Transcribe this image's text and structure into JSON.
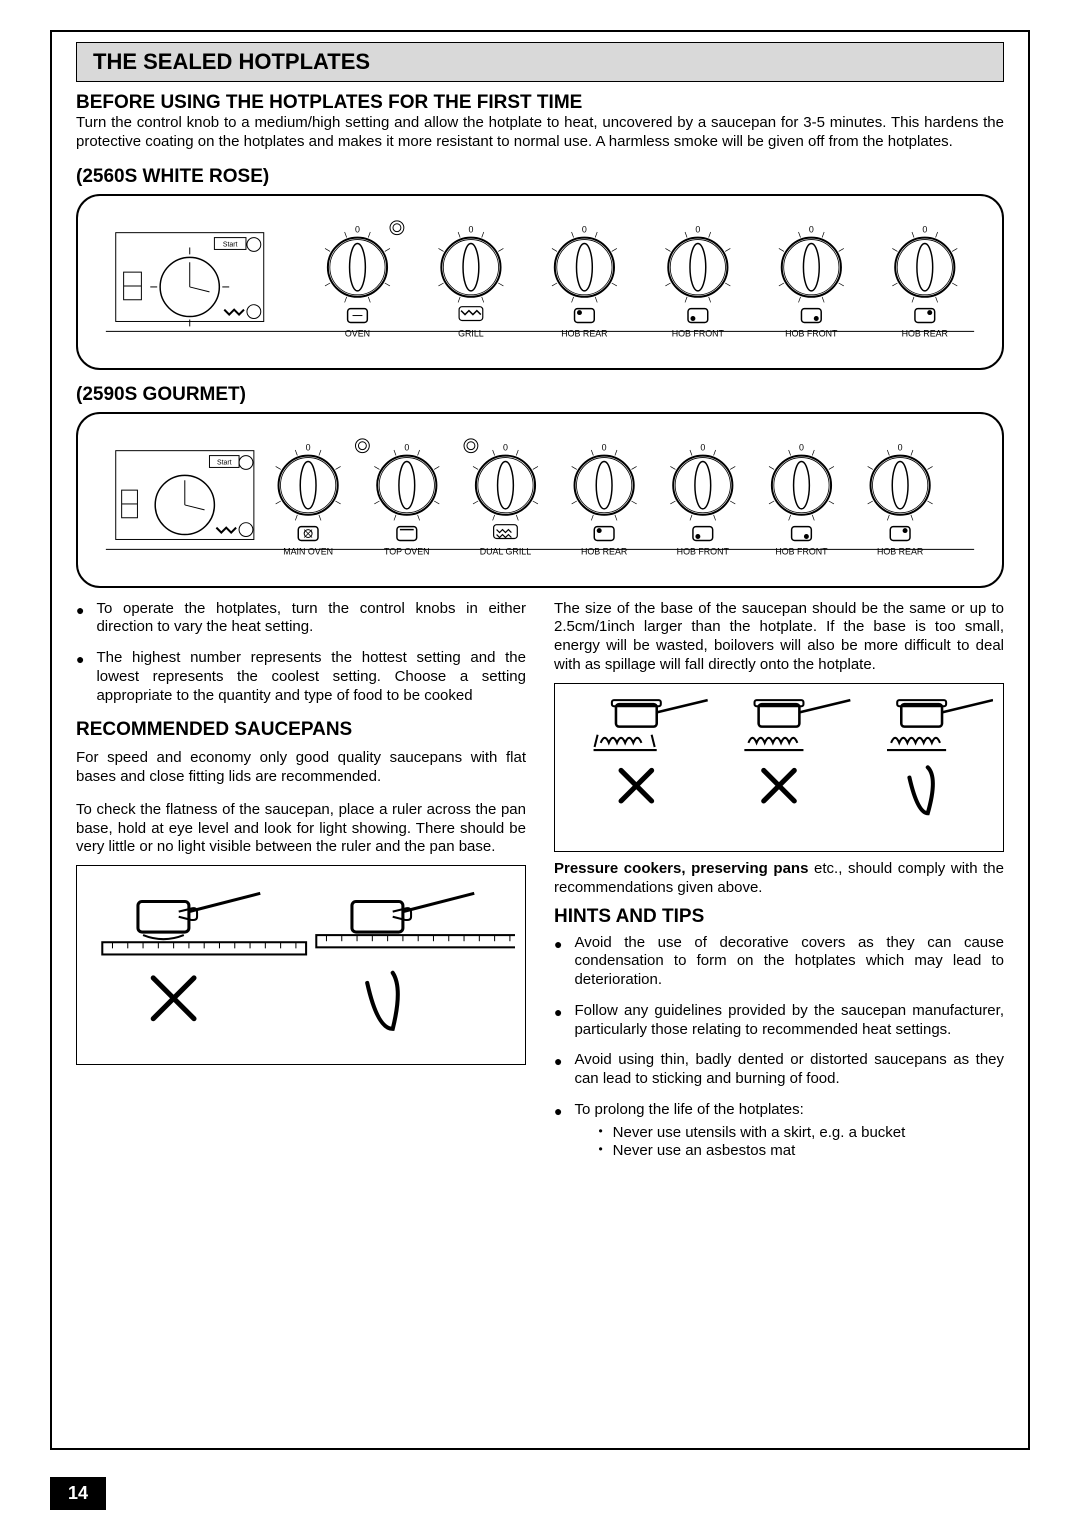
{
  "title": "THE SEALED HOTPLATES",
  "section1": {
    "heading": "BEFORE USING THE  HOTPLATES FOR THE FIRST TIME",
    "body": "Turn the control knob to a medium/high setting and allow the hotplate to heat, uncovered by a saucepan for 3-5 minutes. This hardens the protective coating on the hotplates and makes it more resistant to normal use. A harmless smoke will be given off from the hotplates."
  },
  "panel1": {
    "heading": "(2560S WHITE ROSE)",
    "knob_labels": [
      "OVEN",
      "GRILL",
      "HOB REAR",
      "HOB FRONT",
      "HOB FRONT",
      "HOB REAR"
    ]
  },
  "panel2": {
    "heading": "(2590S GOURMET)",
    "knob_labels": [
      "MAIN OVEN",
      "TOP OVEN",
      "DUAL GRILL",
      "HOB REAR",
      "HOB FRONT",
      "HOB FRONT",
      "HOB REAR"
    ]
  },
  "left_col": {
    "bullets": [
      "To operate the hotplates, turn the control knobs in either direction to vary the heat setting.",
      "The highest number represents the hottest setting and the lowest represents the coolest setting. Choose a setting appropriate to the quantity and type of food to be cooked"
    ],
    "saucepans": {
      "heading": "RECOMMENDED  SAUCEPANS",
      "p1": "For speed and economy only good quality saucepans with flat bases and close fitting lids are recommended.",
      "p2": "To check the flatness of the saucepan, place a ruler across the pan base, hold at eye level and look for light showing. There should be very little or no light visible between the ruler and the pan base."
    }
  },
  "right_col": {
    "intro": "The size of the base of the saucepan should be the same or up to 2.5cm/1inch larger than the hotplate. If the base is too small, energy will be wasted, boilovers will also be more difficult to deal with as spillage will fall directly onto the hotplate.",
    "bold_line_prefix": "Pressure cookers, preserving pans",
    "bold_line_rest": " etc., should comply with the recommendations given above.",
    "hints": {
      "heading": "HINTS  AND TIPS",
      "items": [
        "Avoid the use of decorative covers as they can cause condensation to form on the hotplates which may lead to deterioration.",
        "Follow any guidelines provided by the saucepan manufacturer, particularly those relating to recommended  heat settings.",
        "Avoid using thin, badly dented or distorted saucepans as they can lead to sticking and burning of food.",
        "To prolong the life of the hotplates:"
      ],
      "sub": [
        "Never use utensils with a skirt, e.g. a bucket",
        "Never use an asbestos mat"
      ]
    }
  },
  "page_number": "14",
  "colors": {
    "title_bg": "#d9d9d9",
    "text": "#000000",
    "bg": "#ffffff"
  }
}
